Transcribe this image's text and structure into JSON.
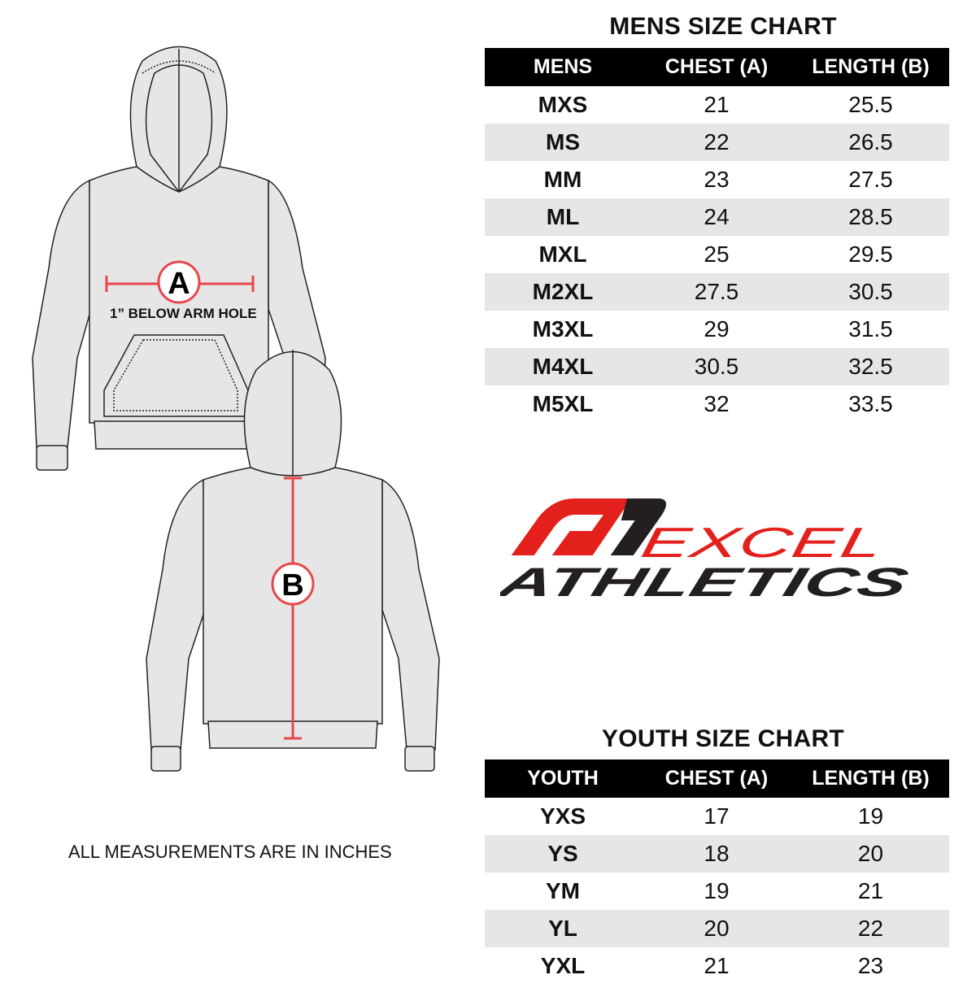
{
  "diagram": {
    "label_a": "A",
    "label_b": "B",
    "arm_hole_note": "1” BELOW ARM HOLE",
    "measure_color": "#e8474c",
    "garment_fill": "#e6e6e6"
  },
  "footer_note": "ALL MEASUREMENTS ARE IN INCHES",
  "logo": {
    "line1": "EXCEL",
    "line2": "ATHLETICS",
    "red": "#e3201b",
    "black": "#231f20"
  },
  "mens": {
    "title": "MENS SIZE CHART",
    "headers": [
      "MENS",
      "CHEST (A)",
      "LENGTH (B)"
    ],
    "rows": [
      [
        "MXS",
        "21",
        "25.5"
      ],
      [
        "MS",
        "22",
        "26.5"
      ],
      [
        "MM",
        "23",
        "27.5"
      ],
      [
        "ML",
        "24",
        "28.5"
      ],
      [
        "MXL",
        "25",
        "29.5"
      ],
      [
        "M2XL",
        "27.5",
        "30.5"
      ],
      [
        "M3XL",
        "29",
        "31.5"
      ],
      [
        "M4XL",
        "30.5",
        "32.5"
      ],
      [
        "M5XL",
        "32",
        "33.5"
      ]
    ]
  },
  "youth": {
    "title": "YOUTH SIZE CHART",
    "headers": [
      "YOUTH",
      "CHEST (A)",
      "LENGTH (B)"
    ],
    "rows": [
      [
        "YXS",
        "17",
        "19"
      ],
      [
        "YS",
        "18",
        "20"
      ],
      [
        "YM",
        "19",
        "21"
      ],
      [
        "YL",
        "20",
        "22"
      ],
      [
        "YXL",
        "21",
        "23"
      ]
    ]
  }
}
